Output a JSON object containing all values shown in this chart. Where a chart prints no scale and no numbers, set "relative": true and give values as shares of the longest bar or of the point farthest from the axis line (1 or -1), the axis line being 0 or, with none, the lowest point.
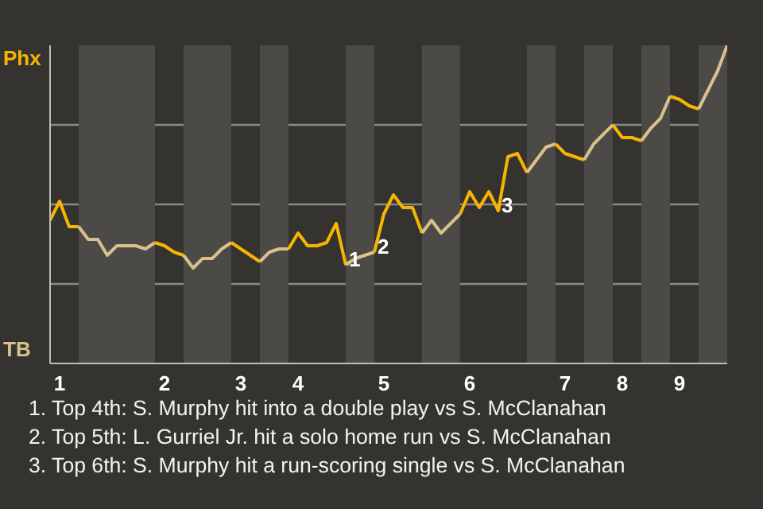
{
  "chart_data": {
    "type": "line",
    "relative": true,
    "categories": [
      null,
      "1",
      null,
      null,
      null,
      null,
      null,
      null,
      null,
      null,
      null,
      null,
      "2",
      null,
      null,
      null,
      null,
      null,
      null,
      null,
      "3",
      null,
      null,
      null,
      null,
      null,
      "4",
      null,
      null,
      null,
      null,
      null,
      null,
      null,
      null,
      "5",
      null,
      null,
      null,
      null,
      null,
      null,
      null,
      null,
      "6",
      null,
      null,
      null,
      null,
      null,
      null,
      null,
      null,
      null,
      "7",
      null,
      null,
      null,
      null,
      null,
      "8",
      null,
      null,
      null,
      null,
      null,
      "9",
      null,
      null,
      null,
      null,
      null
    ],
    "series": [
      {
        "color": "#f7b500",
        "values": [
          0.45,
          0.51,
          0.43,
          0.43,
          null,
          null,
          null,
          null,
          null,
          null,
          null,
          null,
          null,
          null,
          null,
          null,
          null,
          null,
          null,
          null,
          null,
          null,
          null,
          null,
          null,
          null,
          null,
          null,
          null,
          null,
          null,
          null,
          null,
          null,
          null,
          null,
          null,
          null,
          null,
          null,
          null,
          null,
          null,
          null,
          null,
          null,
          null,
          null,
          null,
          null,
          null,
          null,
          null,
          null,
          null,
          null,
          null,
          null,
          null,
          null,
          null,
          null,
          null,
          null,
          null,
          null,
          null,
          null,
          null,
          null,
          null,
          null
        ]
      },
      {
        "color": "#d9c08c",
        "values": [
          null,
          null,
          null,
          0.43,
          0.39,
          0.39,
          0.34,
          0.37,
          0.37,
          0.37,
          0.36,
          0.38,
          null,
          null,
          null,
          null,
          null,
          null,
          null,
          null,
          null,
          null,
          null,
          null,
          null,
          null,
          null,
          null,
          null,
          null,
          null,
          null,
          null,
          null,
          null,
          null,
          null,
          null,
          null,
          null,
          null,
          null,
          null,
          null,
          null,
          null,
          null,
          null,
          null,
          null,
          null,
          null,
          null,
          null,
          null,
          null,
          null,
          null,
          null,
          null,
          null,
          null,
          null,
          null,
          null,
          null,
          null,
          null,
          null,
          null,
          null,
          null
        ]
      },
      {
        "color": "#f7b500",
        "values": [
          null,
          null,
          null,
          null,
          null,
          null,
          null,
          null,
          null,
          null,
          null,
          0.38,
          0.37,
          0.35,
          0.34,
          null,
          null,
          null,
          null,
          null,
          null,
          null,
          null,
          null,
          null,
          null,
          null,
          null,
          null,
          null,
          null,
          null,
          null,
          null,
          null,
          null,
          null,
          null,
          null,
          null,
          null,
          null,
          null,
          null,
          null,
          null,
          null,
          null,
          null,
          null,
          null,
          null,
          null,
          null,
          null,
          null,
          null,
          null,
          null,
          null,
          null,
          null,
          null,
          null,
          null,
          null,
          null,
          null,
          null,
          null,
          null,
          null
        ]
      },
      {
        "color": "#d9c08c",
        "values": [
          null,
          null,
          null,
          null,
          null,
          null,
          null,
          null,
          null,
          null,
          null,
          null,
          null,
          null,
          0.34,
          0.3,
          0.33,
          0.33,
          0.36,
          0.38,
          null,
          null,
          null,
          null,
          null,
          null,
          null,
          null,
          null,
          null,
          null,
          null,
          null,
          null,
          null,
          null,
          null,
          null,
          null,
          null,
          null,
          null,
          null,
          null,
          null,
          null,
          null,
          null,
          null,
          null,
          null,
          null,
          null,
          null,
          null,
          null,
          null,
          null,
          null,
          null,
          null,
          null,
          null,
          null,
          null,
          null,
          null,
          null,
          null,
          null,
          null,
          null
        ]
      },
      {
        "color": "#f7b500",
        "values": [
          null,
          null,
          null,
          null,
          null,
          null,
          null,
          null,
          null,
          null,
          null,
          null,
          null,
          null,
          null,
          null,
          null,
          null,
          null,
          0.38,
          0.36,
          0.34,
          0.32,
          null,
          null,
          null,
          null,
          null,
          null,
          null,
          null,
          null,
          null,
          null,
          null,
          null,
          null,
          null,
          null,
          null,
          null,
          null,
          null,
          null,
          null,
          null,
          null,
          null,
          null,
          null,
          null,
          null,
          null,
          null,
          null,
          null,
          null,
          null,
          null,
          null,
          null,
          null,
          null,
          null,
          null,
          null,
          null,
          null,
          null,
          null,
          null,
          null
        ]
      },
      {
        "color": "#d9c08c",
        "values": [
          null,
          null,
          null,
          null,
          null,
          null,
          null,
          null,
          null,
          null,
          null,
          null,
          null,
          null,
          null,
          null,
          null,
          null,
          null,
          null,
          null,
          null,
          0.32,
          0.35,
          0.36,
          0.36,
          null,
          null,
          null,
          null,
          null,
          null,
          null,
          null,
          null,
          null,
          null,
          null,
          null,
          null,
          null,
          null,
          null,
          null,
          null,
          null,
          null,
          null,
          null,
          null,
          null,
          null,
          null,
          null,
          null,
          null,
          null,
          null,
          null,
          null,
          null,
          null,
          null,
          null,
          null,
          null,
          null,
          null,
          null,
          null,
          null,
          null
        ]
      },
      {
        "color": "#f7b500",
        "values": [
          null,
          null,
          null,
          null,
          null,
          null,
          null,
          null,
          null,
          null,
          null,
          null,
          null,
          null,
          null,
          null,
          null,
          null,
          null,
          null,
          null,
          null,
          null,
          null,
          null,
          0.36,
          0.41,
          0.37,
          0.37,
          0.38,
          0.44,
          0.31,
          null,
          null,
          null,
          null,
          null,
          null,
          null,
          null,
          null,
          null,
          null,
          null,
          null,
          null,
          null,
          null,
          null,
          null,
          null,
          null,
          null,
          null,
          null,
          null,
          null,
          null,
          null,
          null,
          null,
          null,
          null,
          null,
          null,
          null,
          null,
          null,
          null,
          null,
          null,
          null
        ]
      },
      {
        "color": "#d9c08c",
        "values": [
          null,
          null,
          null,
          null,
          null,
          null,
          null,
          null,
          null,
          null,
          null,
          null,
          null,
          null,
          null,
          null,
          null,
          null,
          null,
          null,
          null,
          null,
          null,
          null,
          null,
          null,
          null,
          null,
          null,
          null,
          null,
          0.31,
          0.33,
          0.34,
          0.35,
          null,
          null,
          null,
          null,
          null,
          null,
          null,
          null,
          null,
          null,
          null,
          null,
          null,
          null,
          null,
          null,
          null,
          null,
          null,
          null,
          null,
          null,
          null,
          null,
          null,
          null,
          null,
          null,
          null,
          null,
          null,
          null,
          null,
          null,
          null,
          null,
          null
        ]
      },
      {
        "color": "#f7b500",
        "values": [
          null,
          null,
          null,
          null,
          null,
          null,
          null,
          null,
          null,
          null,
          null,
          null,
          null,
          null,
          null,
          null,
          null,
          null,
          null,
          null,
          null,
          null,
          null,
          null,
          null,
          null,
          null,
          null,
          null,
          null,
          null,
          null,
          null,
          null,
          0.35,
          0.47,
          0.53,
          0.49,
          0.49,
          0.41,
          null,
          null,
          null,
          null,
          null,
          null,
          null,
          null,
          null,
          null,
          null,
          null,
          null,
          null,
          null,
          null,
          null,
          null,
          null,
          null,
          null,
          null,
          null,
          null,
          null,
          null,
          null,
          null,
          null,
          null,
          null,
          null
        ]
      },
      {
        "color": "#d9c08c",
        "values": [
          null,
          null,
          null,
          null,
          null,
          null,
          null,
          null,
          null,
          null,
          null,
          null,
          null,
          null,
          null,
          null,
          null,
          null,
          null,
          null,
          null,
          null,
          null,
          null,
          null,
          null,
          null,
          null,
          null,
          null,
          null,
          null,
          null,
          null,
          null,
          null,
          null,
          null,
          null,
          0.41,
          0.45,
          0.41,
          0.44,
          0.47,
          null,
          null,
          null,
          null,
          null,
          null,
          null,
          null,
          null,
          null,
          null,
          null,
          null,
          null,
          null,
          null,
          null,
          null,
          null,
          null,
          null,
          null,
          null,
          null,
          null,
          null,
          null,
          null
        ]
      },
      {
        "color": "#f7b500",
        "values": [
          null,
          null,
          null,
          null,
          null,
          null,
          null,
          null,
          null,
          null,
          null,
          null,
          null,
          null,
          null,
          null,
          null,
          null,
          null,
          null,
          null,
          null,
          null,
          null,
          null,
          null,
          null,
          null,
          null,
          null,
          null,
          null,
          null,
          null,
          null,
          null,
          null,
          null,
          null,
          null,
          null,
          null,
          null,
          0.47,
          0.54,
          0.49,
          0.54,
          0.48,
          0.65,
          0.66,
          0.6,
          null,
          null,
          null,
          null,
          null,
          null,
          null,
          null,
          null,
          null,
          null,
          null,
          null,
          null,
          null,
          null,
          null,
          null,
          null,
          null,
          null
        ]
      },
      {
        "color": "#d9c08c",
        "values": [
          null,
          null,
          null,
          null,
          null,
          null,
          null,
          null,
          null,
          null,
          null,
          null,
          null,
          null,
          null,
          null,
          null,
          null,
          null,
          null,
          null,
          null,
          null,
          null,
          null,
          null,
          null,
          null,
          null,
          null,
          null,
          null,
          null,
          null,
          null,
          null,
          null,
          null,
          null,
          null,
          null,
          null,
          null,
          null,
          null,
          null,
          null,
          null,
          null,
          null,
          0.6,
          0.64,
          0.68,
          0.69,
          null,
          null,
          null,
          null,
          null,
          null,
          null,
          null,
          null,
          null,
          null,
          null,
          null,
          null,
          null,
          null,
          null,
          null
        ]
      },
      {
        "color": "#f7b500",
        "values": [
          null,
          null,
          null,
          null,
          null,
          null,
          null,
          null,
          null,
          null,
          null,
          null,
          null,
          null,
          null,
          null,
          null,
          null,
          null,
          null,
          null,
          null,
          null,
          null,
          null,
          null,
          null,
          null,
          null,
          null,
          null,
          null,
          null,
          null,
          null,
          null,
          null,
          null,
          null,
          null,
          null,
          null,
          null,
          null,
          null,
          null,
          null,
          null,
          null,
          null,
          null,
          null,
          null,
          0.69,
          0.66,
          0.65,
          0.64,
          null,
          null,
          null,
          null,
          null,
          null,
          null,
          null,
          null,
          null,
          null,
          null,
          null,
          null,
          null
        ]
      },
      {
        "color": "#d9c08c",
        "values": [
          null,
          null,
          null,
          null,
          null,
          null,
          null,
          null,
          null,
          null,
          null,
          null,
          null,
          null,
          null,
          null,
          null,
          null,
          null,
          null,
          null,
          null,
          null,
          null,
          null,
          null,
          null,
          null,
          null,
          null,
          null,
          null,
          null,
          null,
          null,
          null,
          null,
          null,
          null,
          null,
          null,
          null,
          null,
          null,
          null,
          null,
          null,
          null,
          null,
          null,
          null,
          null,
          null,
          null,
          null,
          null,
          0.64,
          0.69,
          0.72,
          0.75,
          null,
          null,
          null,
          null,
          null,
          null,
          null,
          null,
          null,
          null,
          null,
          null
        ]
      },
      {
        "color": "#f7b500",
        "values": [
          null,
          null,
          null,
          null,
          null,
          null,
          null,
          null,
          null,
          null,
          null,
          null,
          null,
          null,
          null,
          null,
          null,
          null,
          null,
          null,
          null,
          null,
          null,
          null,
          null,
          null,
          null,
          null,
          null,
          null,
          null,
          null,
          null,
          null,
          null,
          null,
          null,
          null,
          null,
          null,
          null,
          null,
          null,
          null,
          null,
          null,
          null,
          null,
          null,
          null,
          null,
          null,
          null,
          null,
          null,
          null,
          null,
          null,
          null,
          0.75,
          0.71,
          0.71,
          0.7,
          null,
          null,
          null,
          null,
          null,
          null,
          null,
          null,
          null
        ]
      },
      {
        "color": "#d9c08c",
        "values": [
          null,
          null,
          null,
          null,
          null,
          null,
          null,
          null,
          null,
          null,
          null,
          null,
          null,
          null,
          null,
          null,
          null,
          null,
          null,
          null,
          null,
          null,
          null,
          null,
          null,
          null,
          null,
          null,
          null,
          null,
          null,
          null,
          null,
          null,
          null,
          null,
          null,
          null,
          null,
          null,
          null,
          null,
          null,
          null,
          null,
          null,
          null,
          null,
          null,
          null,
          null,
          null,
          null,
          null,
          null,
          null,
          null,
          null,
          null,
          null,
          null,
          null,
          0.7,
          0.74,
          0.77,
          0.84,
          null,
          null,
          null,
          null,
          null,
          null
        ]
      },
      {
        "color": "#f7b500",
        "values": [
          null,
          null,
          null,
          null,
          null,
          null,
          null,
          null,
          null,
          null,
          null,
          null,
          null,
          null,
          null,
          null,
          null,
          null,
          null,
          null,
          null,
          null,
          null,
          null,
          null,
          null,
          null,
          null,
          null,
          null,
          null,
          null,
          null,
          null,
          null,
          null,
          null,
          null,
          null,
          null,
          null,
          null,
          null,
          null,
          null,
          null,
          null,
          null,
          null,
          null,
          null,
          null,
          null,
          null,
          null,
          null,
          null,
          null,
          null,
          null,
          null,
          null,
          null,
          null,
          null,
          0.84,
          0.83,
          0.81,
          0.8,
          null,
          null,
          null
        ]
      },
      {
        "color": "#d9c08c",
        "values": [
          null,
          null,
          null,
          null,
          null,
          null,
          null,
          null,
          null,
          null,
          null,
          null,
          null,
          null,
          null,
          null,
          null,
          null,
          null,
          null,
          null,
          null,
          null,
          null,
          null,
          null,
          null,
          null,
          null,
          null,
          null,
          null,
          null,
          null,
          null,
          null,
          null,
          null,
          null,
          null,
          null,
          null,
          null,
          null,
          null,
          null,
          null,
          null,
          null,
          null,
          null,
          null,
          null,
          null,
          null,
          null,
          null,
          null,
          null,
          null,
          null,
          null,
          null,
          null,
          null,
          null,
          null,
          null,
          0.8,
          0.86,
          0.92,
          1.0
        ]
      }
    ],
    "annotations": [
      "Phx",
      "TB",
      {
        "text": "1",
        "y": 0.31
      },
      {
        "text": "2",
        "y": 0.35
      },
      {
        "text": "3",
        "y": 0.48
      },
      "1. Top 4th: S. Murphy hit into a double play vs S. McClanahan",
      "2. Top 5th: L. Gurriel Jr. hit a solo home run vs S. McClanahan",
      "3. Top 6th: S. Murphy hit a run-scoring single vs S. McClanahan"
    ],
    "grid": "y"
  }
}
